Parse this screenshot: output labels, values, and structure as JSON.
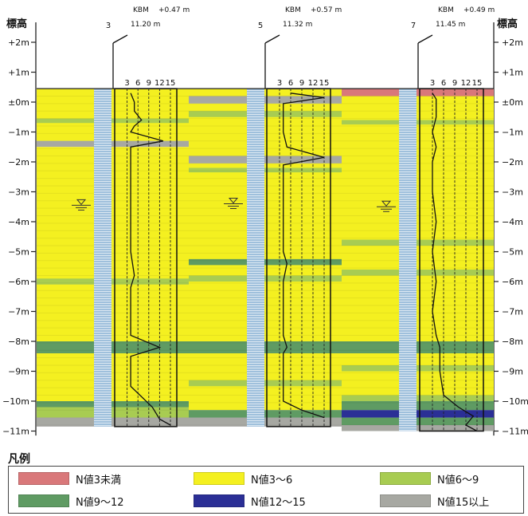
{
  "axis": {
    "title": "標高",
    "ticks": [
      {
        "depth": 2,
        "label": "+2m"
      },
      {
        "depth": 1,
        "label": "+1m"
      },
      {
        "depth": 0,
        "label": "±0m"
      },
      {
        "depth": -1,
        "label": "−1m"
      },
      {
        "depth": -2,
        "label": "−2m"
      },
      {
        "depth": -3,
        "label": "−3m"
      },
      {
        "depth": -4,
        "label": "−4m"
      },
      {
        "depth": -5,
        "label": "−5m"
      },
      {
        "depth": -6,
        "label": "−6m"
      },
      {
        "depth": -7,
        "label": "−7m"
      },
      {
        "depth": -8,
        "label": "−8m"
      },
      {
        "depth": -9,
        "label": "−9m"
      },
      {
        "depth": -10,
        "label": "−10m"
      },
      {
        "depth": -11,
        "label": "−11m"
      }
    ],
    "range": [
      2.5,
      -11.2
    ]
  },
  "n_scale": [
    3,
    6,
    9,
    12,
    15
  ],
  "colors": {
    "lt3": "#d9787a",
    "n3to6": "#f4f020",
    "n6to9": "#a8cc52",
    "n9to12": "#5f9b63",
    "n12to15": "#2b2f96",
    "gt15": "#a7a8a2",
    "casing": "#9fc0dc"
  },
  "boreholes": [
    {
      "number": "3",
      "kbm_label": "KBM",
      "kbm_offset": "+0.47 m",
      "elevation": "11.20 m",
      "top": 0.45,
      "bottom": -10.85,
      "water_level": -3.45,
      "layers": [
        {
          "from": 0.45,
          "to": -1.3,
          "class": "n3to6"
        },
        {
          "from": -0.55,
          "to": -0.7,
          "class": "n6to9"
        },
        {
          "from": -0.6,
          "to": -0.65,
          "class": "n6to9"
        },
        {
          "from": -1.3,
          "to": -1.5,
          "class": "gt15"
        },
        {
          "from": -1.5,
          "to": -8.0,
          "class": "n3to6"
        },
        {
          "from": -5.9,
          "to": -6.1,
          "class": "n6to9"
        },
        {
          "from": -8.0,
          "to": -8.4,
          "class": "n9to12"
        },
        {
          "from": -8.4,
          "to": -10.0,
          "class": "n3to6"
        },
        {
          "from": -10.0,
          "to": -10.2,
          "class": "n9to12"
        },
        {
          "from": -10.2,
          "to": -10.55,
          "class": "n6to9"
        },
        {
          "from": -10.55,
          "to": -10.85,
          "class": "gt15"
        }
      ],
      "n_values": [
        {
          "depth": 0.3,
          "n": 4
        },
        {
          "depth": 0.0,
          "n": 5
        },
        {
          "depth": -0.3,
          "n": 5
        },
        {
          "depth": -0.6,
          "n": 7
        },
        {
          "depth": -0.8,
          "n": 5
        },
        {
          "depth": -1.0,
          "n": 4
        },
        {
          "depth": -1.3,
          "n": 13
        },
        {
          "depth": -1.5,
          "n": 4
        },
        {
          "depth": -2.0,
          "n": 4
        },
        {
          "depth": -3.0,
          "n": 4
        },
        {
          "depth": -4.0,
          "n": 4
        },
        {
          "depth": -5.0,
          "n": 4
        },
        {
          "depth": -5.8,
          "n": 5
        },
        {
          "depth": -6.2,
          "n": 4
        },
        {
          "depth": -7.0,
          "n": 4
        },
        {
          "depth": -7.8,
          "n": 4
        },
        {
          "depth": -8.2,
          "n": 12
        },
        {
          "depth": -8.5,
          "n": 4
        },
        {
          "depth": -9.5,
          "n": 4
        },
        {
          "depth": -10.2,
          "n": 10
        },
        {
          "depth": -10.6,
          "n": 12
        },
        {
          "depth": -10.8,
          "n": 15
        }
      ]
    },
    {
      "number": "5",
      "kbm_label": "KBM",
      "kbm_offset": "+0.57 m",
      "elevation": "11.32 m",
      "top": 0.45,
      "bottom": -10.85,
      "water_level": -3.4,
      "layers": [
        {
          "from": 0.45,
          "to": 0.2,
          "class": "n3to6"
        },
        {
          "from": 0.2,
          "to": -0.05,
          "class": "gt15"
        },
        {
          "from": -0.05,
          "to": -1.8,
          "class": "n3to6"
        },
        {
          "from": -0.3,
          "to": -0.5,
          "class": "n6to9"
        },
        {
          "from": -1.8,
          "to": -2.05,
          "class": "gt15"
        },
        {
          "from": -2.05,
          "to": -8.0,
          "class": "n3to6"
        },
        {
          "from": -2.2,
          "to": -2.35,
          "class": "n6to9"
        },
        {
          "from": -5.25,
          "to": -5.45,
          "class": "n9to12"
        },
        {
          "from": -5.8,
          "to": -6.0,
          "class": "n6to9"
        },
        {
          "from": -8.0,
          "to": -8.4,
          "class": "n9to12"
        },
        {
          "from": -8.4,
          "to": -10.3,
          "class": "n3to6"
        },
        {
          "from": -9.3,
          "to": -9.5,
          "class": "n6to9"
        },
        {
          "from": -10.3,
          "to": -10.55,
          "class": "n9to12"
        },
        {
          "from": -10.55,
          "to": -10.85,
          "class": "gt15"
        }
      ],
      "n_values": [
        {
          "depth": 0.3,
          "n": 6
        },
        {
          "depth": 0.15,
          "n": 15
        },
        {
          "depth": -0.05,
          "n": 4
        },
        {
          "depth": -0.5,
          "n": 4
        },
        {
          "depth": -1.0,
          "n": 4
        },
        {
          "depth": -1.5,
          "n": 5
        },
        {
          "depth": -1.85,
          "n": 15
        },
        {
          "depth": -2.1,
          "n": 4
        },
        {
          "depth": -3.0,
          "n": 4
        },
        {
          "depth": -4.0,
          "n": 4
        },
        {
          "depth": -5.0,
          "n": 4
        },
        {
          "depth": -5.4,
          "n": 5
        },
        {
          "depth": -6.0,
          "n": 4
        },
        {
          "depth": -7.0,
          "n": 4
        },
        {
          "depth": -7.8,
          "n": 4
        },
        {
          "depth": -8.2,
          "n": 5
        },
        {
          "depth": -8.4,
          "n": 4
        },
        {
          "depth": -9.5,
          "n": 4
        },
        {
          "depth": -10.0,
          "n": 4
        },
        {
          "depth": -10.3,
          "n": 9
        },
        {
          "depth": -10.55,
          "n": 15
        }
      ]
    },
    {
      "number": "7",
      "kbm_label": "KBM",
      "kbm_offset": "+0.49 m",
      "elevation": "11.45 m",
      "top": 0.45,
      "bottom": -11.0,
      "water_level": -3.5,
      "layers": [
        {
          "from": 0.45,
          "to": 0.2,
          "class": "lt3"
        },
        {
          "from": 0.2,
          "to": -8.0,
          "class": "n3to6"
        },
        {
          "from": -0.6,
          "to": -0.75,
          "class": "n6to9"
        },
        {
          "from": -4.6,
          "to": -4.8,
          "class": "n6to9"
        },
        {
          "from": -5.6,
          "to": -5.8,
          "class": "n6to9"
        },
        {
          "from": -8.0,
          "to": -8.4,
          "class": "n9to12"
        },
        {
          "from": -8.4,
          "to": -9.8,
          "class": "n3to6"
        },
        {
          "from": -8.8,
          "to": -9.0,
          "class": "n6to9"
        },
        {
          "from": -9.8,
          "to": -10.0,
          "class": "n6to9"
        },
        {
          "from": -10.0,
          "to": -10.3,
          "class": "n9to12"
        },
        {
          "from": -10.3,
          "to": -10.55,
          "class": "n12to15"
        },
        {
          "from": -10.55,
          "to": -10.8,
          "class": "n9to12"
        },
        {
          "from": -10.8,
          "to": -11.0,
          "class": "gt15"
        }
      ],
      "n_values": [
        {
          "depth": 0.3,
          "n": 3
        },
        {
          "depth": 0.1,
          "n": 4
        },
        {
          "depth": -0.5,
          "n": 4
        },
        {
          "depth": -1.0,
          "n": 3
        },
        {
          "depth": -1.5,
          "n": 4
        },
        {
          "depth": -2.0,
          "n": 3
        },
        {
          "depth": -3.0,
          "n": 3
        },
        {
          "depth": -4.0,
          "n": 4
        },
        {
          "depth": -5.0,
          "n": 3
        },
        {
          "depth": -6.0,
          "n": 4
        },
        {
          "depth": -7.0,
          "n": 3
        },
        {
          "depth": -7.8,
          "n": 4
        },
        {
          "depth": -8.2,
          "n": 5
        },
        {
          "depth": -9.0,
          "n": 5
        },
        {
          "depth": -9.8,
          "n": 6
        },
        {
          "depth": -10.2,
          "n": 10
        },
        {
          "depth": -10.5,
          "n": 14
        },
        {
          "depth": -10.8,
          "n": 12
        },
        {
          "depth": -11.0,
          "n": 15
        }
      ]
    }
  ],
  "legend": {
    "title": "凡例",
    "items": [
      {
        "class": "lt3",
        "label": "N値3未満"
      },
      {
        "class": "n3to6",
        "label": "N値3～6"
      },
      {
        "class": "n6to9",
        "label": "N値6～9"
      },
      {
        "class": "n9to12",
        "label": "N値9～12"
      },
      {
        "class": "n12to15",
        "label": "N値12～15"
      },
      {
        "class": "gt15",
        "label": "N値15以上"
      }
    ]
  }
}
